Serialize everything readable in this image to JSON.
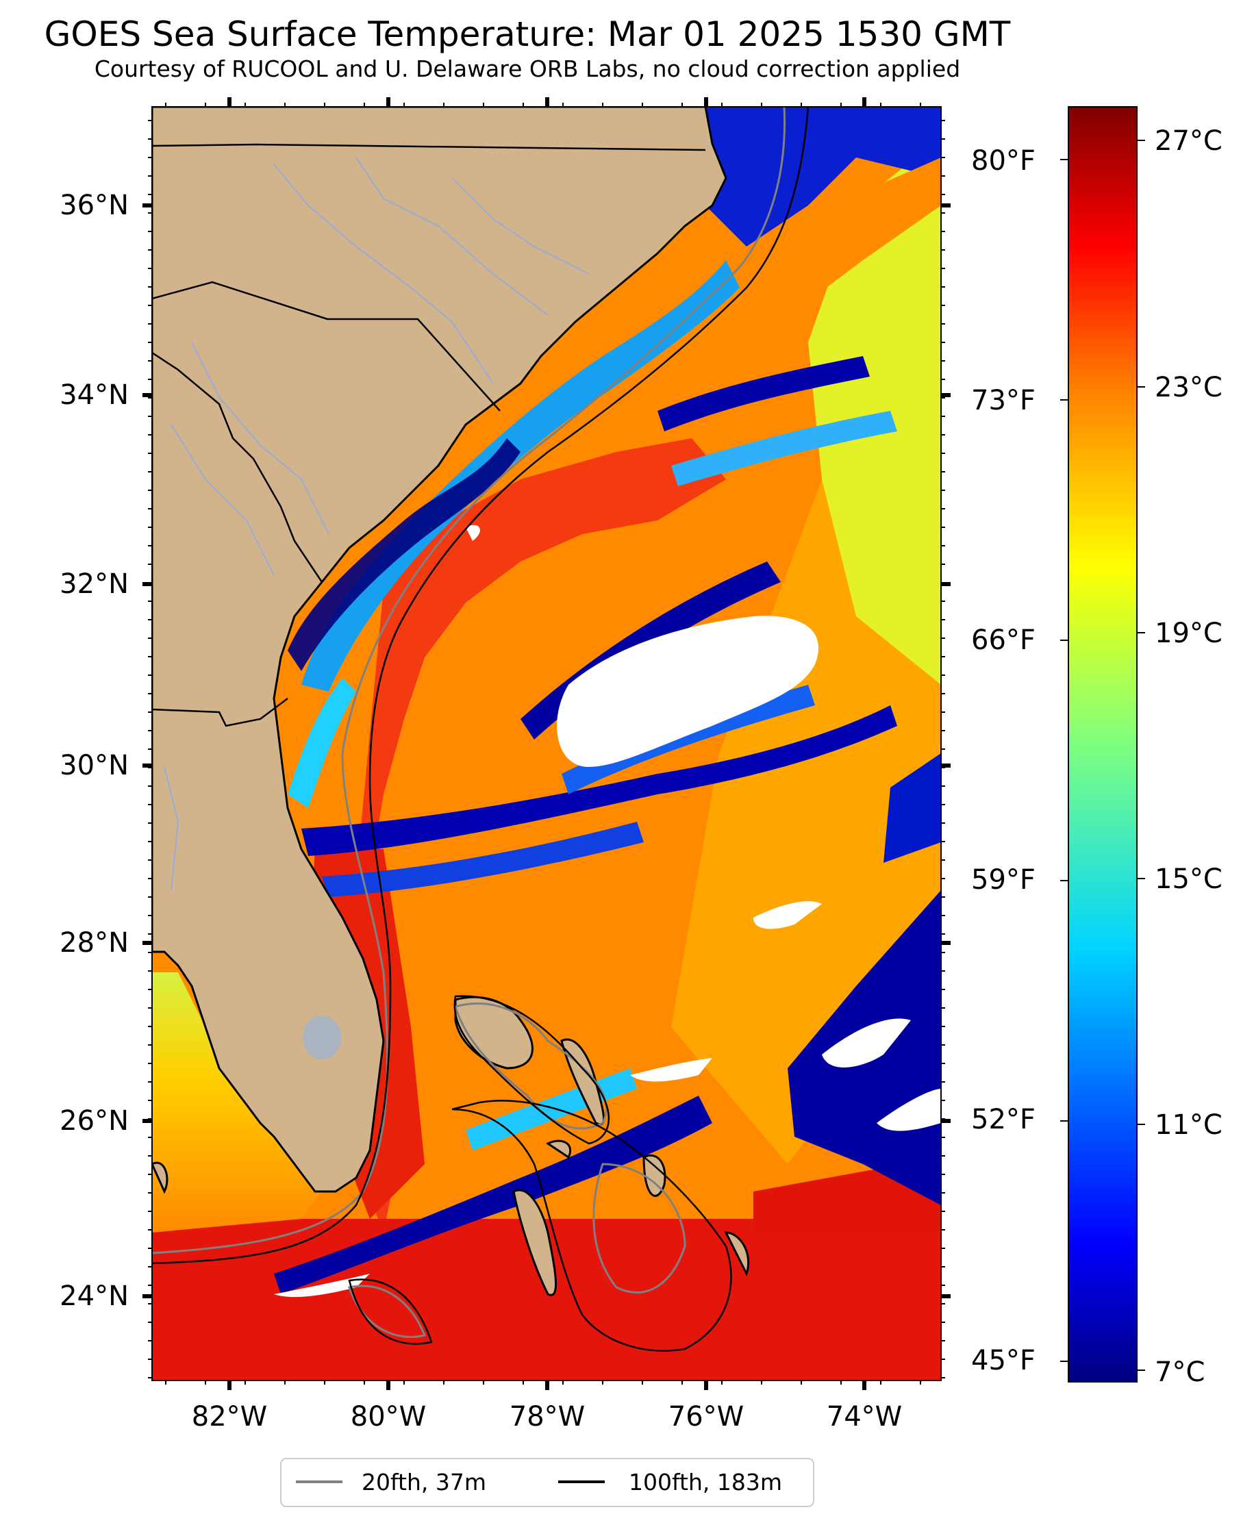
{
  "header": {
    "title": "GOES Sea Surface Temperature: Mar 01 2025 1530 GMT",
    "subtitle": "Courtesy of RUCOOL and U. Delaware ORB Labs, no cloud correction applied"
  },
  "map": {
    "lon_labels": [
      "82°W",
      "80°W",
      "78°W",
      "76°W",
      "74°W"
    ],
    "lat_labels": [
      "36°N",
      "34°N",
      "32°N",
      "30°N",
      "28°N",
      "26°N",
      "24°N"
    ],
    "fahrenheit_labels": [
      "80°F",
      "73°F",
      "66°F",
      "59°F",
      "52°F",
      "45°F"
    ]
  },
  "colorbar": {
    "labels": [
      "27°C",
      "23°C",
      "19°C",
      "15°C",
      "11°C",
      "7°C"
    ],
    "colors": [
      "#00007f",
      "#0000ff",
      "#007fff",
      "#00ffff",
      "#7fff7f",
      "#ffff00",
      "#ff7f00",
      "#ff0000",
      "#7f0000"
    ]
  },
  "legend": {
    "items": [
      {
        "label": "20fth, 37m",
        "color": "#808080"
      },
      {
        "label": "100fth, 183m",
        "color": "#000000"
      }
    ]
  },
  "colors": {
    "land": "#d2b48c",
    "cloud": "#ffffff",
    "isobath_20fth": "#808080",
    "isobath_100fth": "#000000",
    "rivers": "#9aaad8"
  }
}
